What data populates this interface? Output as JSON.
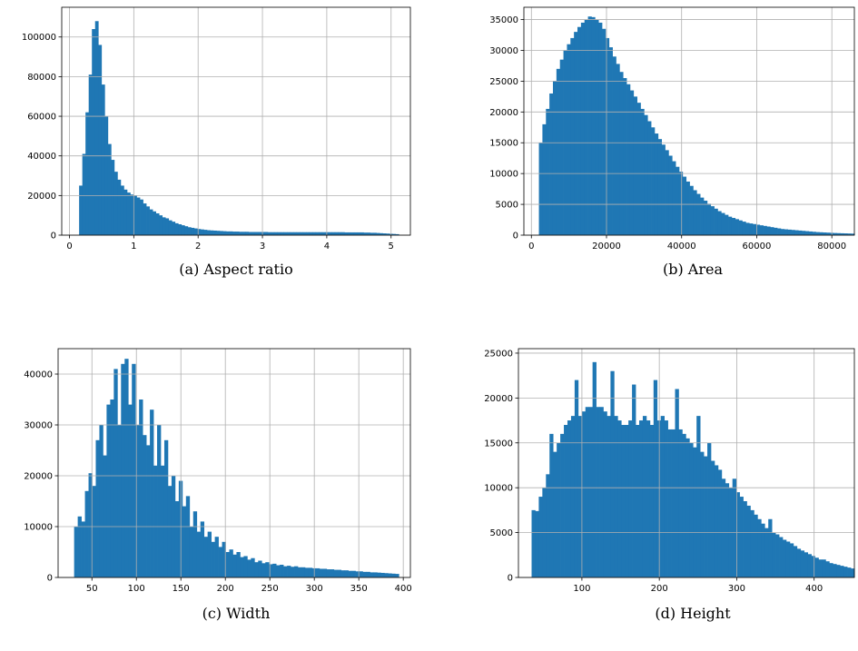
{
  "chart_data": [
    {
      "type": "bar",
      "caption": "(a) Aspect ratio",
      "grid": true,
      "color": "#1f77b4",
      "xlim": [
        -0.12,
        5.3
      ],
      "ylim": [
        0,
        115000
      ],
      "xticks": [
        0,
        1,
        2,
        3,
        4,
        5
      ],
      "yticks": [
        0,
        20000,
        40000,
        60000,
        80000,
        100000
      ],
      "x_start": 0.15,
      "x_end": 5.12,
      "values": [
        25000,
        41000,
        62000,
        81000,
        104000,
        108000,
        96000,
        76000,
        60000,
        46000,
        38000,
        32000,
        28000,
        25000,
        23000,
        21500,
        20500,
        20000,
        19000,
        18000,
        16000,
        14500,
        13000,
        12000,
        11000,
        10000,
        9000,
        8500,
        7500,
        6800,
        6000,
        5500,
        5000,
        4500,
        4000,
        3700,
        3400,
        3100,
        2900,
        2700,
        2500,
        2400,
        2300,
        2200,
        2100,
        2000,
        1900,
        1900,
        1800,
        1800,
        1700,
        1700,
        1700,
        1600,
        1600,
        1600,
        1600,
        1600,
        1600,
        1500,
        1500,
        1500,
        1500,
        1500,
        1500,
        1500,
        1500,
        1500,
        1500,
        1500,
        1500,
        1500,
        1500,
        1500,
        1500,
        1500,
        1500,
        1500,
        1500,
        1500,
        1500,
        1500,
        1500,
        1400,
        1400,
        1400,
        1400,
        1400,
        1400,
        1300,
        1300,
        1200,
        1200,
        1100,
        1000,
        900,
        800,
        700,
        600,
        500
      ]
    },
    {
      "type": "bar",
      "caption": "(b) Area",
      "grid": true,
      "color": "#1f77b4",
      "xlim": [
        -2000,
        86000
      ],
      "ylim": [
        0,
        37000
      ],
      "xticks": [
        0,
        20000,
        40000,
        60000,
        80000
      ],
      "yticks": [
        0,
        5000,
        10000,
        15000,
        20000,
        25000,
        30000,
        35000
      ],
      "x_start": 2000,
      "x_end": 86000,
      "values": [
        15000,
        18000,
        20500,
        23000,
        25000,
        27000,
        28500,
        30000,
        31000,
        32000,
        33000,
        33800,
        34500,
        35000,
        35500,
        35400,
        35000,
        34500,
        33500,
        32000,
        30500,
        29000,
        27800,
        26500,
        25500,
        24500,
        23500,
        22500,
        21500,
        20500,
        19500,
        18500,
        17500,
        16500,
        15600,
        14700,
        13800,
        12900,
        12000,
        11100,
        10300,
        9500,
        8700,
        8000,
        7300,
        6700,
        6100,
        5600,
        5100,
        4700,
        4300,
        3900,
        3600,
        3300,
        3000,
        2800,
        2600,
        2400,
        2200,
        2000,
        1900,
        1800,
        1700,
        1600,
        1500,
        1400,
        1300,
        1200,
        1100,
        1000,
        950,
        900,
        850,
        800,
        750,
        700,
        650,
        600,
        550,
        500,
        470,
        440,
        410,
        380,
        350,
        330,
        310,
        290,
        270,
        250
      ]
    },
    {
      "type": "bar",
      "caption": "(c) Width",
      "grid": true,
      "color": "#1f77b4",
      "xlim": [
        12,
        408
      ],
      "ylim": [
        0,
        45000
      ],
      "xticks": [
        50,
        100,
        150,
        200,
        250,
        300,
        350,
        400
      ],
      "yticks": [
        0,
        10000,
        20000,
        30000,
        40000
      ],
      "x_start": 30,
      "x_end": 395,
      "values": [
        10000,
        12000,
        11000,
        17000,
        20500,
        18000,
        27000,
        30000,
        24000,
        34000,
        35000,
        41000,
        30000,
        42000,
        43000,
        34000,
        42000,
        30000,
        35000,
        28000,
        26000,
        33000,
        22000,
        30000,
        22000,
        27000,
        18000,
        20000,
        15000,
        19000,
        14000,
        16000,
        10000,
        13000,
        9000,
        11000,
        8000,
        9000,
        7000,
        8000,
        6000,
        7000,
        5000,
        5500,
        4500,
        5000,
        4000,
        4200,
        3500,
        3800,
        3000,
        3300,
        2800,
        3000,
        2600,
        2700,
        2400,
        2500,
        2200,
        2300,
        2100,
        2200,
        2000,
        2000,
        1900,
        1900,
        1800,
        1800,
        1700,
        1700,
        1600,
        1600,
        1500,
        1500,
        1400,
        1400,
        1300,
        1300,
        1200,
        1200,
        1100,
        1100,
        1000,
        1000,
        950,
        900,
        850,
        800,
        750,
        700
      ]
    },
    {
      "type": "bar",
      "caption": "(d) Height",
      "grid": true,
      "color": "#1f77b4",
      "xlim": [
        18,
        452
      ],
      "ylim": [
        0,
        25500
      ],
      "xticks": [
        100,
        200,
        300,
        400
      ],
      "yticks": [
        0,
        5000,
        10000,
        15000,
        20000,
        25000
      ],
      "x_start": 35,
      "x_end": 452,
      "values": [
        7500,
        7400,
        9000,
        10000,
        11500,
        16000,
        14000,
        15000,
        16000,
        17000,
        17500,
        18000,
        22000,
        18000,
        18500,
        19000,
        19000,
        24000,
        19000,
        19000,
        18500,
        18000,
        23000,
        18000,
        17500,
        17000,
        17000,
        17500,
        21500,
        17000,
        17500,
        18000,
        17500,
        17000,
        22000,
        17500,
        18000,
        17500,
        16500,
        16500,
        21000,
        16500,
        16000,
        15500,
        15000,
        14500,
        18000,
        14000,
        13500,
        15000,
        13000,
        12500,
        12000,
        11000,
        10500,
        10000,
        11000,
        9500,
        9000,
        8500,
        8000,
        7500,
        7000,
        6500,
        6000,
        5500,
        6500,
        5000,
        4800,
        4500,
        4200,
        4000,
        3800,
        3500,
        3200,
        3000,
        2800,
        2600,
        2400,
        2200,
        2000,
        2000,
        1800,
        1600,
        1500,
        1400,
        1300,
        1200,
        1100,
        1000
      ]
    }
  ]
}
